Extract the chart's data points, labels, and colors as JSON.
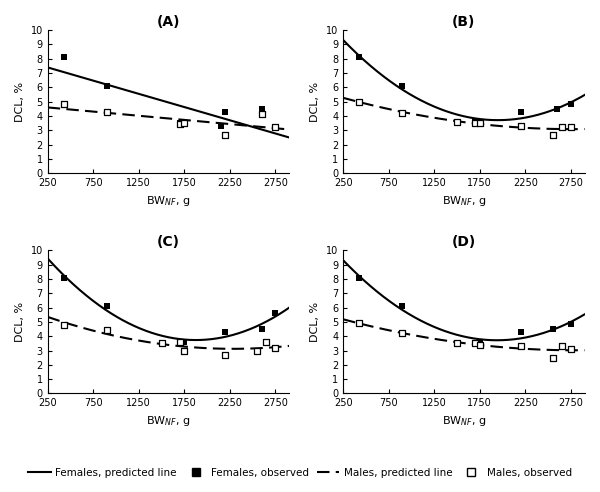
{
  "title_A": "(A)",
  "title_B": "(B)",
  "title_C": "(C)",
  "title_D": "(D)",
  "ylabel": "DCL, %",
  "xlim": [
    250,
    2900
  ],
  "ylim": [
    0,
    10
  ],
  "yticks": [
    0,
    1,
    2,
    3,
    4,
    5,
    6,
    7,
    8,
    9,
    10
  ],
  "xticks": [
    250,
    750,
    1250,
    1750,
    2250,
    2750
  ],
  "xticklabels": [
    "250",
    "750",
    "1250",
    "1750",
    "2250",
    "2750"
  ],
  "females_obs_A": [
    [
      430,
      8.1
    ],
    [
      900,
      6.1
    ],
    [
      1700,
      3.5
    ],
    [
      1750,
      3.5
    ],
    [
      2150,
      3.3
    ],
    [
      2200,
      4.3
    ],
    [
      2600,
      4.5
    ]
  ],
  "males_obs_A": [
    [
      430,
      4.8
    ],
    [
      900,
      4.3
    ],
    [
      1700,
      3.4
    ],
    [
      1750,
      3.5
    ],
    [
      2200,
      2.7
    ],
    [
      2600,
      4.1
    ],
    [
      2750,
      3.2
    ]
  ],
  "females_obs_B": [
    [
      430,
      8.1
    ],
    [
      900,
      6.1
    ],
    [
      1700,
      3.55
    ],
    [
      1750,
      3.55
    ],
    [
      2200,
      4.3
    ],
    [
      2600,
      4.5
    ],
    [
      2750,
      4.85
    ]
  ],
  "males_obs_B": [
    [
      430,
      5.0
    ],
    [
      900,
      4.2
    ],
    [
      1500,
      3.6
    ],
    [
      1700,
      3.5
    ],
    [
      1750,
      3.5
    ],
    [
      2200,
      3.3
    ],
    [
      2550,
      2.7
    ],
    [
      2650,
      3.2
    ],
    [
      2750,
      3.2
    ]
  ],
  "females_obs_C": [
    [
      430,
      8.1
    ],
    [
      900,
      6.1
    ],
    [
      1700,
      3.6
    ],
    [
      1750,
      3.6
    ],
    [
      2200,
      4.3
    ],
    [
      2600,
      4.5
    ],
    [
      2750,
      5.6
    ]
  ],
  "males_obs_C": [
    [
      430,
      4.8
    ],
    [
      900,
      4.4
    ],
    [
      1500,
      3.55
    ],
    [
      1700,
      3.6
    ],
    [
      1750,
      3.0
    ],
    [
      2200,
      2.7
    ],
    [
      2550,
      3.0
    ],
    [
      2650,
      3.6
    ],
    [
      2750,
      3.2
    ]
  ],
  "females_obs_D": [
    [
      430,
      8.1
    ],
    [
      900,
      6.1
    ],
    [
      1700,
      3.55
    ],
    [
      1750,
      3.55
    ],
    [
      2200,
      4.3
    ],
    [
      2550,
      4.5
    ],
    [
      2750,
      4.85
    ]
  ],
  "males_obs_D": [
    [
      430,
      4.9
    ],
    [
      900,
      4.2
    ],
    [
      1500,
      3.5
    ],
    [
      1700,
      3.5
    ],
    [
      1750,
      3.4
    ],
    [
      2200,
      3.3
    ],
    [
      2550,
      2.5
    ],
    [
      2650,
      3.3
    ],
    [
      2750,
      3.1
    ]
  ],
  "background_color": "#ffffff"
}
